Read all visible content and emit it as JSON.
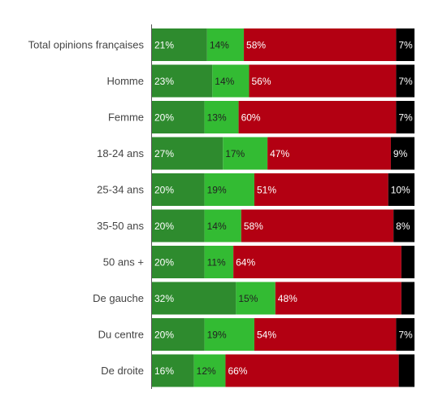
{
  "chart_data": {
    "type": "bar",
    "orientation": "horizontal",
    "stacked": "percent",
    "categories": [
      "Total opinions françaises",
      "Homme",
      "Femme",
      "18-24 ans",
      "25-34 ans",
      "35-50 ans",
      "50 ans +",
      "De gauche",
      "Du centre",
      "De droite"
    ],
    "series": [
      {
        "color": "#2e8b2e",
        "label_color": "#ffffff",
        "values": [
          21,
          23,
          20,
          27,
          20,
          20,
          20,
          32,
          20,
          16
        ]
      },
      {
        "color": "#33bb33",
        "label_color": "#222222",
        "values": [
          14,
          14,
          13,
          17,
          19,
          14,
          11,
          15,
          19,
          12
        ]
      },
      {
        "color": "#b30012",
        "label_color": "#ffffff",
        "values": [
          58,
          56,
          60,
          47,
          51,
          58,
          64,
          48,
          54,
          66
        ]
      },
      {
        "color": "#000000",
        "label_color": "#ffffff",
        "values": [
          7,
          7,
          7,
          9,
          10,
          8,
          null,
          null,
          7,
          null
        ]
      }
    ],
    "xlim": [
      0,
      100
    ],
    "grid": false,
    "legend": "none",
    "label_suffix": "%"
  }
}
